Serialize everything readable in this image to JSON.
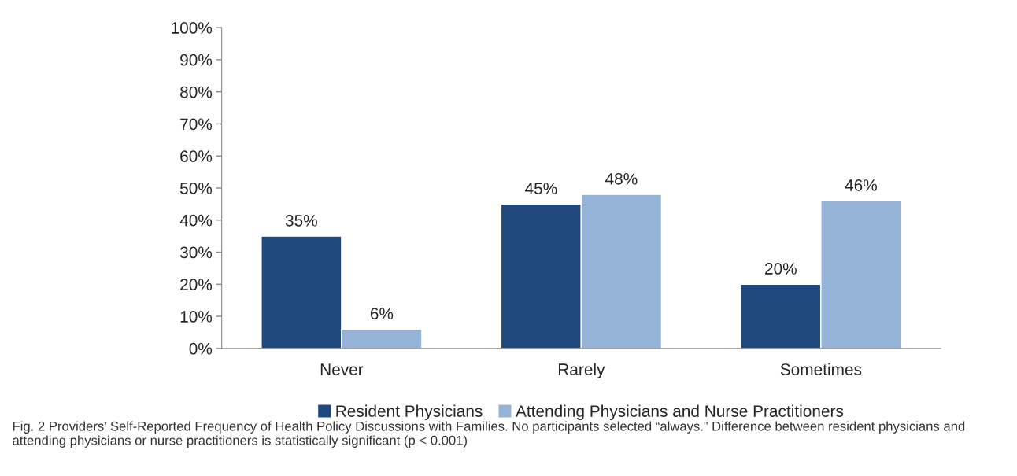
{
  "chart_data": {
    "type": "bar",
    "categories": [
      "Never",
      "Rarely",
      "Sometimes"
    ],
    "series": [
      {
        "name": "Resident Physicians",
        "color": "#1f497d",
        "values": [
          35,
          45,
          20
        ],
        "value_labels": [
          "35%",
          "45%",
          "20%"
        ]
      },
      {
        "name": "Attending Physicians and Nurse Practitioners",
        "color": "#95b3d7",
        "values": [
          6,
          48,
          46
        ],
        "value_labels": [
          "6%",
          "48%",
          "46%"
        ]
      }
    ],
    "ylim": [
      0,
      100
    ],
    "yticks": [
      {
        "value": 0,
        "label": "0%"
      },
      {
        "value": 10,
        "label": "10%"
      },
      {
        "value": 20,
        "label": "20%"
      },
      {
        "value": 30,
        "label": "30%"
      },
      {
        "value": 40,
        "label": "40%"
      },
      {
        "value": 50,
        "label": "50%"
      },
      {
        "value": 60,
        "label": "60%"
      },
      {
        "value": 70,
        "label": "70%"
      },
      {
        "value": 80,
        "label": "80%"
      },
      {
        "value": 90,
        "label": "90%"
      },
      {
        "value": 100,
        "label": "100%"
      }
    ],
    "grid": false,
    "legend": "bottom",
    "annotations": [
      "Fig. 2 Providers’ Self-Reported Frequency of Health Policy Discussions with Families. No participants selected “always.” Difference between resident physicians and attending physicians or nurse practitioners is statistically significant (p < 0.001)"
    ]
  }
}
